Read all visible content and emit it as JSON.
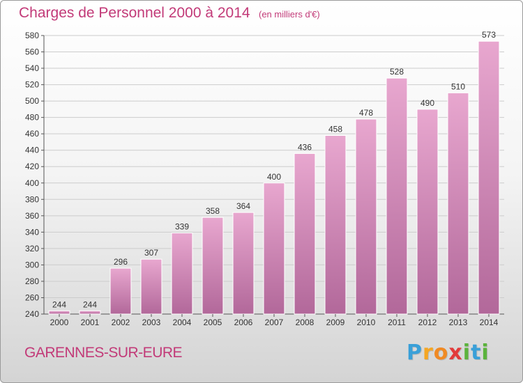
{
  "header": {
    "title": "Charges de Personnel 2000 à 2014",
    "subtitle": "(en milliers d'€)"
  },
  "footer": {
    "commune": "GARENNES-SUR-EURE",
    "logo_letters": [
      "P",
      "r",
      "o",
      "x",
      "i",
      "t",
      "i"
    ],
    "logo_colors": [
      "#3aa0d8",
      "#f5a623",
      "#f08a24",
      "#e23b3b",
      "#5bb33c",
      "#3aa0d8",
      "#5bb33c"
    ]
  },
  "colors": {
    "title": "#c23a78",
    "bar_top": "#e8a7cf",
    "bar_bottom": "#b2689a",
    "grid": "#cccccc"
  },
  "chart_data": {
    "type": "bar",
    "categories": [
      "2000",
      "2001",
      "2002",
      "2003",
      "2004",
      "2005",
      "2006",
      "2007",
      "2008",
      "2009",
      "2010",
      "2011",
      "2012",
      "2013",
      "2014"
    ],
    "values": [
      244,
      244,
      296,
      307,
      339,
      358,
      364,
      400,
      436,
      458,
      478,
      528,
      490,
      510,
      573
    ],
    "ylim": [
      240,
      580
    ],
    "yticks": [
      240,
      260,
      280,
      300,
      320,
      340,
      360,
      380,
      400,
      420,
      440,
      460,
      480,
      500,
      520,
      540,
      560,
      580
    ],
    "grid": true,
    "xlabel": "",
    "ylabel": ""
  }
}
